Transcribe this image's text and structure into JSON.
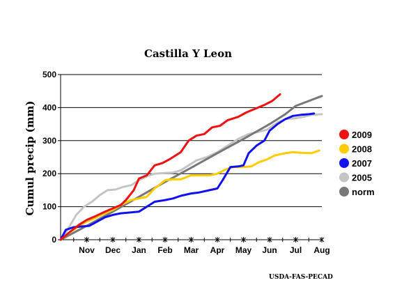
{
  "credit": "USDA-FAS-PECAD",
  "chart_data": {
    "type": "line",
    "title": "Castilla Y Leon",
    "xlabel": "",
    "ylabel": "Cumul precip (mm)",
    "ylim": [
      0,
      500
    ],
    "yticks": [
      0,
      100,
      200,
      300,
      400,
      500
    ],
    "xlim": [
      0,
      10
    ],
    "x_ticks": [
      {
        "label": "Nov",
        "x": 1
      },
      {
        "label": "Dec",
        "x": 2
      },
      {
        "label": "Jan",
        "x": 3
      },
      {
        "label": "Feb",
        "x": 4
      },
      {
        "label": "Mar",
        "x": 5
      },
      {
        "label": "Apr",
        "x": 6
      },
      {
        "label": "May",
        "x": 7
      },
      {
        "label": "Jun",
        "x": 8
      },
      {
        "label": "Jul",
        "x": 9
      },
      {
        "label": "Aug",
        "x": 10
      }
    ],
    "grid": "horizontal",
    "legend_position": "right",
    "series": [
      {
        "name": "2009",
        "color": "#ee1111",
        "points": [
          [
            0,
            0
          ],
          [
            0.3,
            20
          ],
          [
            0.7,
            45
          ],
          [
            1.0,
            60
          ],
          [
            1.3,
            70
          ],
          [
            1.7,
            85
          ],
          [
            2.0,
            95
          ],
          [
            2.3,
            105
          ],
          [
            2.5,
            120
          ],
          [
            2.8,
            150
          ],
          [
            3.0,
            185
          ],
          [
            3.3,
            195
          ],
          [
            3.6,
            225
          ],
          [
            3.9,
            232
          ],
          [
            4.2,
            245
          ],
          [
            4.6,
            265
          ],
          [
            4.9,
            300
          ],
          [
            5.2,
            315
          ],
          [
            5.5,
            320
          ],
          [
            5.8,
            340
          ],
          [
            6.1,
            345
          ],
          [
            6.4,
            362
          ],
          [
            6.8,
            372
          ],
          [
            7.1,
            385
          ],
          [
            7.5,
            398
          ],
          [
            7.8,
            408
          ],
          [
            8.1,
            420
          ],
          [
            8.4,
            440
          ]
        ]
      },
      {
        "name": "2008",
        "color": "#ffcc00",
        "points": [
          [
            0,
            0
          ],
          [
            0.3,
            20
          ],
          [
            0.7,
            40
          ],
          [
            1.0,
            55
          ],
          [
            1.3,
            65
          ],
          [
            1.7,
            80
          ],
          [
            2.0,
            90
          ],
          [
            2.3,
            105
          ],
          [
            2.7,
            120
          ],
          [
            3.0,
            125
          ],
          [
            3.3,
            130
          ],
          [
            3.6,
            155
          ],
          [
            4.0,
            180
          ],
          [
            4.3,
            183
          ],
          [
            4.6,
            183
          ],
          [
            5.0,
            195
          ],
          [
            5.3,
            195
          ],
          [
            5.7,
            195
          ],
          [
            6.0,
            200
          ],
          [
            6.3,
            212
          ],
          [
            6.6,
            220
          ],
          [
            7.0,
            220
          ],
          [
            7.3,
            222
          ],
          [
            7.6,
            235
          ],
          [
            7.9,
            243
          ],
          [
            8.2,
            255
          ],
          [
            8.6,
            262
          ],
          [
            8.9,
            265
          ],
          [
            9.2,
            263
          ],
          [
            9.6,
            262
          ],
          [
            9.9,
            270
          ]
        ]
      },
      {
        "name": "2007",
        "color": "#1111ee",
        "points": [
          [
            0,
            0
          ],
          [
            0.2,
            30
          ],
          [
            0.5,
            38
          ],
          [
            0.8,
            40
          ],
          [
            1.1,
            42
          ],
          [
            1.4,
            55
          ],
          [
            1.7,
            68
          ],
          [
            2.0,
            75
          ],
          [
            2.3,
            80
          ],
          [
            2.6,
            82
          ],
          [
            3.0,
            85
          ],
          [
            3.3,
            100
          ],
          [
            3.6,
            115
          ],
          [
            4.0,
            120
          ],
          [
            4.3,
            125
          ],
          [
            4.6,
            133
          ],
          [
            5.0,
            140
          ],
          [
            5.3,
            143
          ],
          [
            5.7,
            150
          ],
          [
            6.0,
            155
          ],
          [
            6.2,
            180
          ],
          [
            6.5,
            220
          ],
          [
            6.8,
            222
          ],
          [
            7.0,
            225
          ],
          [
            7.2,
            262
          ],
          [
            7.5,
            285
          ],
          [
            7.8,
            300
          ],
          [
            8.0,
            330
          ],
          [
            8.3,
            350
          ],
          [
            8.6,
            365
          ],
          [
            8.9,
            375
          ],
          [
            9.2,
            378
          ],
          [
            9.5,
            380
          ],
          [
            9.7,
            382
          ]
        ]
      },
      {
        "name": "2005",
        "color": "#c4c4c4",
        "points": [
          [
            0,
            0
          ],
          [
            0.3,
            35
          ],
          [
            0.6,
            75
          ],
          [
            0.9,
            100
          ],
          [
            1.2,
            115
          ],
          [
            1.5,
            135
          ],
          [
            1.8,
            150
          ],
          [
            2.1,
            152
          ],
          [
            2.4,
            160
          ],
          [
            2.7,
            165
          ],
          [
            3.0,
            180
          ],
          [
            3.3,
            192
          ],
          [
            3.6,
            200
          ],
          [
            4.0,
            202
          ],
          [
            4.3,
            203
          ],
          [
            4.6,
            210
          ],
          [
            4.9,
            225
          ],
          [
            5.2,
            240
          ],
          [
            5.6,
            250
          ],
          [
            6.0,
            265
          ],
          [
            6.4,
            285
          ],
          [
            6.8,
            305
          ],
          [
            7.2,
            320
          ],
          [
            7.6,
            327
          ],
          [
            7.9,
            333
          ],
          [
            8.3,
            355
          ],
          [
            8.6,
            365
          ],
          [
            9.0,
            368
          ],
          [
            9.3,
            372
          ],
          [
            9.6,
            378
          ],
          [
            10.0,
            380
          ]
        ]
      },
      {
        "name": "norm",
        "color": "#777777",
        "points": [
          [
            0,
            0
          ],
          [
            1,
            42
          ],
          [
            2,
            85
          ],
          [
            3,
            130
          ],
          [
            4,
            175
          ],
          [
            5,
            218
          ],
          [
            6,
            262
          ],
          [
            7,
            305
          ],
          [
            8,
            350
          ],
          [
            8.6,
            380
          ],
          [
            9,
            405
          ],
          [
            9.5,
            420
          ],
          [
            10,
            435
          ]
        ]
      }
    ]
  }
}
